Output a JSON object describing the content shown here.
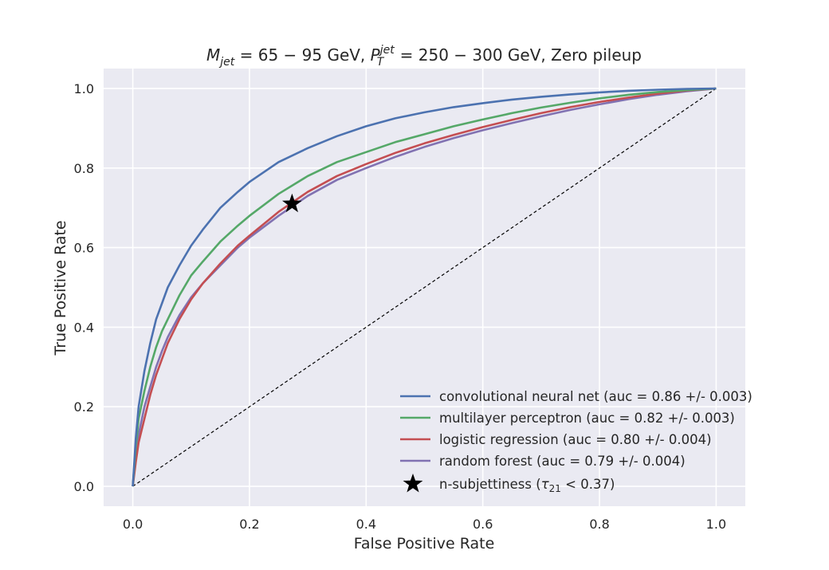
{
  "chart_data": {
    "type": "line",
    "title": "M_jet = 65 − 95 GeV,   P_T^jet = 250 − 300 GeV,   Zero pileup",
    "title_parts": {
      "mjet_main": "M",
      "mjet_sub": "jet",
      "mjet_eq": " = 65 − 95 GeV,   ",
      "pt_main": "P",
      "pt_sup": "jet",
      "pt_sub": "T",
      "pt_eq": " = 250 − 300 GeV,   Zero pileup"
    },
    "xlabel": "False Positive Rate",
    "ylabel": "True Positive Rate",
    "xlim": [
      -0.05,
      1.05
    ],
    "ylim": [
      -0.05,
      1.05
    ],
    "xticks": [
      0.0,
      0.2,
      0.4,
      0.6,
      0.8,
      1.0
    ],
    "yticks": [
      0.0,
      0.2,
      0.4,
      0.6,
      0.8,
      1.0
    ],
    "xtick_labels": [
      "0.0",
      "0.2",
      "0.4",
      "0.6",
      "0.8",
      "1.0"
    ],
    "ytick_labels": [
      "0.0",
      "0.2",
      "0.4",
      "0.6",
      "0.8",
      "1.0"
    ],
    "grid": true,
    "legend_position": "lower-right",
    "background_color": "#eaeaf2",
    "series": [
      {
        "name": "convolutional neural net (auc = 0.86 +/- 0.003)",
        "color": "#4c72b0",
        "x": [
          0,
          0.005,
          0.01,
          0.02,
          0.03,
          0.04,
          0.05,
          0.06,
          0.08,
          0.1,
          0.12,
          0.15,
          0.18,
          0.2,
          0.25,
          0.3,
          0.35,
          0.4,
          0.45,
          0.5,
          0.55,
          0.6,
          0.65,
          0.7,
          0.75,
          0.8,
          0.85,
          0.9,
          0.95,
          1.0
        ],
        "y": [
          0,
          0.12,
          0.2,
          0.29,
          0.36,
          0.42,
          0.46,
          0.5,
          0.555,
          0.605,
          0.645,
          0.7,
          0.74,
          0.765,
          0.815,
          0.85,
          0.88,
          0.905,
          0.925,
          0.94,
          0.953,
          0.963,
          0.972,
          0.979,
          0.985,
          0.99,
          0.994,
          0.997,
          0.999,
          1.0
        ]
      },
      {
        "name": "multilayer perceptron (auc = 0.82 +/- 0.003)",
        "color": "#55a868",
        "x": [
          0,
          0.005,
          0.01,
          0.02,
          0.03,
          0.04,
          0.05,
          0.06,
          0.08,
          0.1,
          0.12,
          0.15,
          0.18,
          0.2,
          0.25,
          0.3,
          0.35,
          0.4,
          0.45,
          0.5,
          0.55,
          0.6,
          0.65,
          0.7,
          0.75,
          0.8,
          0.85,
          0.9,
          0.95,
          1.0
        ],
        "y": [
          0,
          0.1,
          0.17,
          0.24,
          0.3,
          0.35,
          0.39,
          0.42,
          0.48,
          0.53,
          0.565,
          0.615,
          0.655,
          0.68,
          0.735,
          0.78,
          0.815,
          0.84,
          0.865,
          0.885,
          0.905,
          0.922,
          0.938,
          0.952,
          0.964,
          0.975,
          0.984,
          0.991,
          0.996,
          1.0
        ]
      },
      {
        "name": "logistic regression (auc = 0.80 +/- 0.004)",
        "color": "#c44e52",
        "x": [
          0,
          0.005,
          0.01,
          0.02,
          0.03,
          0.04,
          0.05,
          0.06,
          0.08,
          0.1,
          0.12,
          0.15,
          0.18,
          0.2,
          0.25,
          0.3,
          0.35,
          0.4,
          0.45,
          0.5,
          0.55,
          0.6,
          0.65,
          0.7,
          0.75,
          0.8,
          0.85,
          0.9,
          0.95,
          1.0
        ],
        "y": [
          0,
          0.06,
          0.11,
          0.17,
          0.23,
          0.28,
          0.32,
          0.36,
          0.42,
          0.47,
          0.51,
          0.56,
          0.605,
          0.63,
          0.69,
          0.74,
          0.78,
          0.81,
          0.838,
          0.862,
          0.883,
          0.903,
          0.921,
          0.938,
          0.953,
          0.966,
          0.977,
          0.987,
          0.995,
          1.0
        ]
      },
      {
        "name": "random forest (auc = 0.79 +/- 0.004)",
        "color": "#8172b2",
        "x": [
          0,
          0.005,
          0.01,
          0.02,
          0.03,
          0.04,
          0.05,
          0.06,
          0.08,
          0.1,
          0.12,
          0.15,
          0.18,
          0.2,
          0.25,
          0.3,
          0.35,
          0.4,
          0.45,
          0.5,
          0.55,
          0.6,
          0.65,
          0.7,
          0.75,
          0.8,
          0.85,
          0.9,
          0.95,
          1.0
        ],
        "y": [
          0,
          0.08,
          0.13,
          0.2,
          0.25,
          0.3,
          0.34,
          0.375,
          0.43,
          0.475,
          0.51,
          0.555,
          0.6,
          0.625,
          0.68,
          0.73,
          0.77,
          0.8,
          0.828,
          0.853,
          0.875,
          0.895,
          0.913,
          0.93,
          0.946,
          0.96,
          0.973,
          0.984,
          0.993,
          1.0
        ]
      }
    ],
    "reference_line": {
      "x": [
        0,
        1
      ],
      "y": [
        0,
        1
      ],
      "color": "#000000",
      "style": "dashed"
    },
    "marker": {
      "name": "n-subjettiness (τ₂₁ < 0.37)",
      "label_prefix": "n-subjettiness (",
      "label_tau": "τ",
      "label_tau_sub": "21",
      "label_suffix": " < 0.37)",
      "x": 0.273,
      "y": 0.71,
      "symbol": "star",
      "color": "#000000"
    }
  }
}
